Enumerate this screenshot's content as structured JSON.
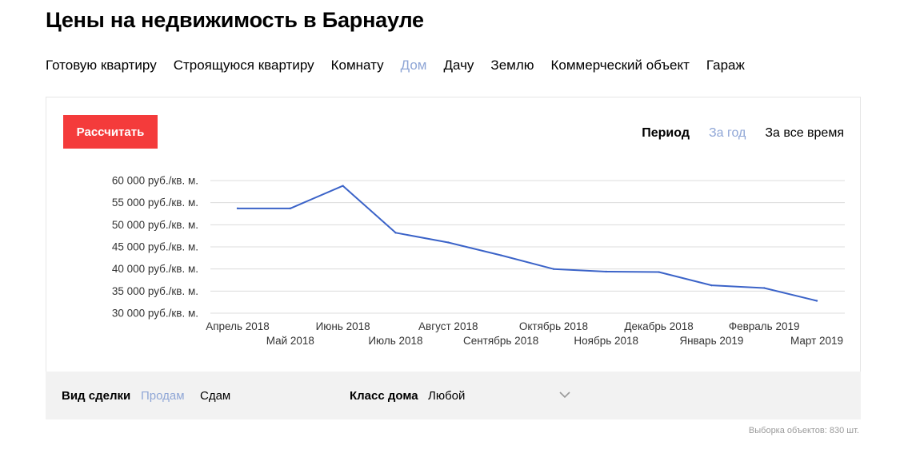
{
  "page": {
    "title": "Цены на недвижимость в Барнауле"
  },
  "tabs": [
    {
      "label": "Готовую квартиру",
      "active": false
    },
    {
      "label": "Строящуюся квартиру",
      "active": false
    },
    {
      "label": "Комнату",
      "active": false
    },
    {
      "label": "Дом",
      "active": true
    },
    {
      "label": "Дачу",
      "active": false
    },
    {
      "label": "Землю",
      "active": false
    },
    {
      "label": "Коммерческий объект",
      "active": false
    },
    {
      "label": "Гараж",
      "active": false
    }
  ],
  "toolbar": {
    "calc_label": "Рассчитать"
  },
  "period": {
    "label": "Период",
    "year": "За год",
    "all_time": "За все время",
    "selected": "year"
  },
  "chart_data": {
    "type": "line",
    "categories": [
      "Апрель 2018",
      "Май 2018",
      "Июнь 2018",
      "Июль 2018",
      "Август 2018",
      "Сентябрь 2018",
      "Октябрь 2018",
      "Ноябрь 2018",
      "Декабрь 2018",
      "Январь 2019",
      "Февраль 2019",
      "Март 2019"
    ],
    "series": [
      {
        "values": [
          53700,
          53700,
          58800,
          48200,
          46000,
          43100,
          40000,
          39400,
          39300,
          36300,
          35700,
          32800
        ]
      }
    ],
    "y_ticks": [
      60000,
      55000,
      50000,
      45000,
      40000,
      35000,
      30000
    ],
    "y_tick_labels": [
      "60 000 руб./кв. м.",
      "55 000 руб./кв. м.",
      "50 000 руб./кв. м.",
      "45 000 руб./кв. м.",
      "40 000 руб./кв. м.",
      "35 000 руб./кв. м.",
      "30 000 руб./кв. м."
    ],
    "ylim": [
      30000,
      60000
    ],
    "grid": true,
    "line_color": "#3b63c8",
    "grid_color": "#dcdcdc"
  },
  "filters": {
    "deal_label": "Вид сделки",
    "sell": "Продам",
    "rent": "Сдам",
    "class_label": "Класс дома",
    "class_value": "Любой"
  },
  "footer": {
    "sample": "Выборка объектов: 830 шт."
  }
}
